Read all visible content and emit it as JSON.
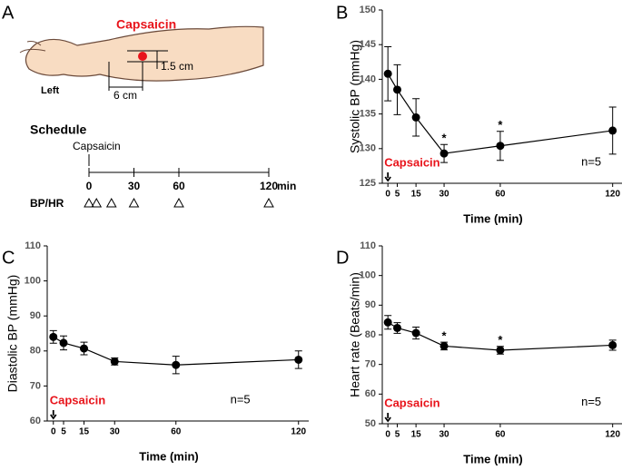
{
  "diagram": {
    "panel": "A",
    "site_label": "Capsaicin",
    "width_label": "1.5 cm",
    "distance_label": "6 cm",
    "side_label": "Left",
    "schedule_title": "Schedule",
    "start_label": "Capsaicin",
    "timeline_ticks": [
      0,
      30,
      60,
      120
    ],
    "timeline_unit": "min",
    "row_label": "BP/HR",
    "measurements": [
      0,
      5,
      15,
      30,
      60,
      120
    ]
  },
  "chart_data": [
    {
      "type": "line",
      "panel": "B",
      "ylabel": "Systolic BP (mmHg)",
      "xlabel": "Time (min)",
      "color": "#000000",
      "x": [
        0,
        5,
        15,
        30,
        60,
        120
      ],
      "values": [
        140.8,
        138.5,
        134.5,
        129.3,
        130.4,
        132.6
      ],
      "errors": [
        3.9,
        3.6,
        2.7,
        1.3,
        2.1,
        3.4
      ],
      "xlim": [
        -3,
        125
      ],
      "xticks": [
        0,
        5,
        15,
        30,
        60,
        120
      ],
      "ylim": [
        125,
        150
      ],
      "yticks": [
        125,
        130,
        135,
        140,
        145,
        150
      ],
      "stars": [
        {
          "x": 30,
          "label": "*"
        },
        {
          "x": 60,
          "label": "*"
        }
      ],
      "start_label": "Capsaicin",
      "start_color": "#e8141b",
      "note": "n=5"
    },
    {
      "type": "line",
      "panel": "C",
      "ylabel": "Diastolic BP (mmHg)",
      "xlabel": "Time (min)",
      "color": "#000000",
      "x": [
        0,
        5,
        15,
        30,
        60,
        120
      ],
      "values": [
        84,
        82.3,
        80.7,
        77,
        76,
        77.5
      ],
      "errors": [
        1.8,
        2,
        1.8,
        1,
        2.5,
        2.5
      ],
      "xlim": [
        -3,
        125
      ],
      "xticks": [
        0,
        5,
        15,
        30,
        60,
        120
      ],
      "ylim": [
        60,
        110
      ],
      "yticks": [
        60,
        70,
        80,
        90,
        100,
        110
      ],
      "stars": [],
      "start_label": "Capsaicin",
      "start_color": "#e8141b",
      "note": "n=5"
    },
    {
      "type": "line",
      "panel": "D",
      "ylabel": "Heart rate (Beats/min)",
      "xlabel": "Time (min)",
      "color": "#000000",
      "x": [
        0,
        5,
        15,
        30,
        60,
        120
      ],
      "values": [
        84.2,
        82.3,
        80.6,
        76.2,
        74.8,
        76.5
      ],
      "errors": [
        2.3,
        1.8,
        2,
        1.3,
        1.3,
        1.7
      ],
      "xlim": [
        -3,
        125
      ],
      "xticks": [
        0,
        5,
        15,
        30,
        60,
        120
      ],
      "ylim": [
        50,
        110
      ],
      "yticks": [
        50,
        60,
        70,
        80,
        90,
        100,
        110
      ],
      "stars": [
        {
          "x": 30,
          "label": "*"
        },
        {
          "x": 60,
          "label": "*"
        }
      ],
      "start_label": "Capsaicin",
      "start_color": "#e8141b",
      "note": "n=5"
    }
  ]
}
